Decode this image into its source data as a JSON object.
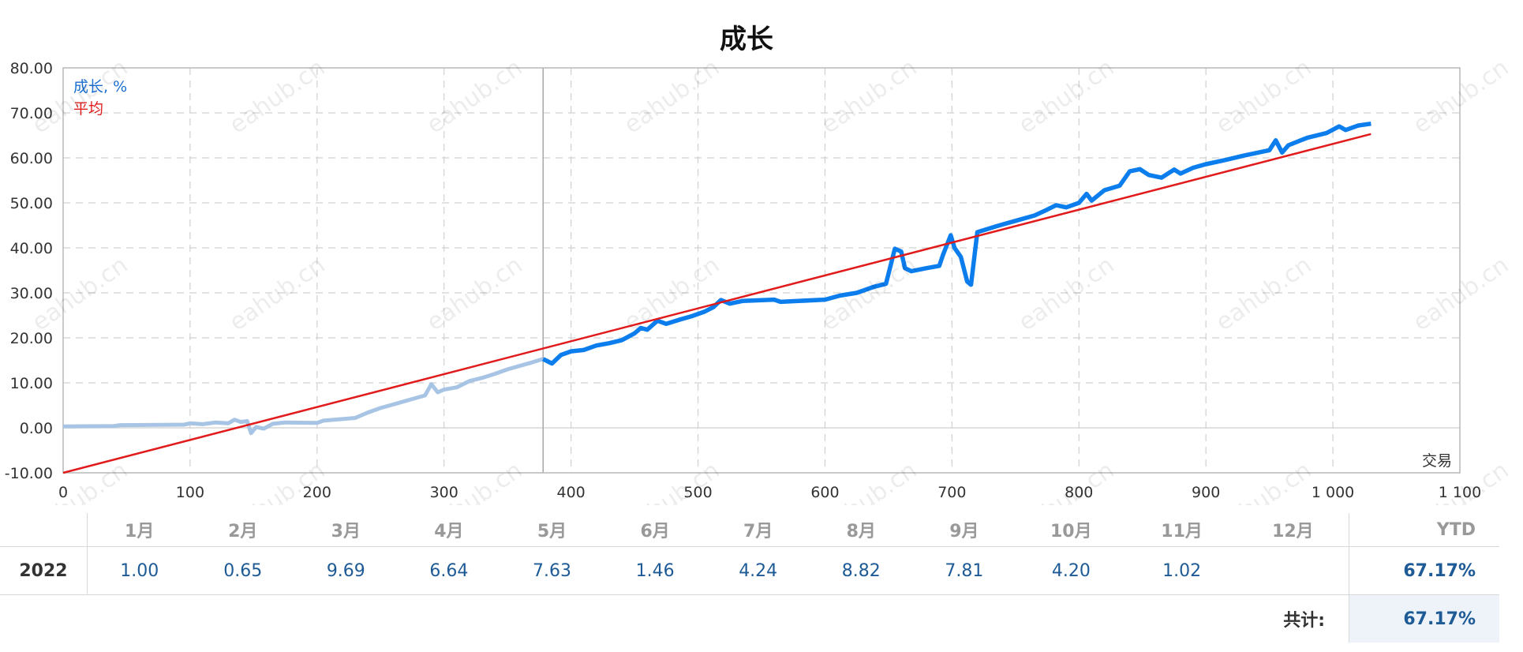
{
  "chart_data": {
    "type": "line",
    "title": "成长",
    "x_range": [
      0,
      1100
    ],
    "y_range": [
      -10,
      80
    ],
    "x_ticks": [
      "0",
      "100",
      "200",
      "300",
      "400",
      "500",
      "600",
      "700",
      "800",
      "900",
      "1 000",
      "1 100"
    ],
    "y_ticks": [
      "-10.00",
      "0.00",
      "10.00",
      "20.00",
      "30.00",
      "40.00",
      "50.00",
      "60.00",
      "70.00",
      "80.00"
    ],
    "x_axis_note": "交易",
    "grid": true,
    "legend": {
      "placement": "top-left",
      "growth_label": "成长, %",
      "average_label": "平均"
    },
    "colors": {
      "history": "#a8c4e4",
      "growth": "#0b7ded",
      "average": "#e11b1b"
    },
    "split_x": 378,
    "series": [
      {
        "name": "成长, %",
        "points": [
          [
            0,
            0.3
          ],
          [
            40,
            0.4
          ],
          [
            45,
            0.6
          ],
          [
            95,
            0.7
          ],
          [
            100,
            1.0
          ],
          [
            110,
            0.8
          ],
          [
            120,
            1.2
          ],
          [
            130,
            1.0
          ],
          [
            135,
            1.8
          ],
          [
            140,
            1.3
          ],
          [
            145,
            1.5
          ],
          [
            148,
            -1.2
          ],
          [
            152,
            0.2
          ],
          [
            158,
            -0.2
          ],
          [
            165,
            0.9
          ],
          [
            175,
            1.2
          ],
          [
            200,
            1.1
          ],
          [
            205,
            1.6
          ],
          [
            230,
            2.2
          ],
          [
            240,
            3.4
          ],
          [
            250,
            4.4
          ],
          [
            260,
            5.2
          ],
          [
            275,
            6.4
          ],
          [
            285,
            7.2
          ],
          [
            290,
            9.7
          ],
          [
            295,
            7.9
          ],
          [
            300,
            8.5
          ],
          [
            310,
            9.0
          ],
          [
            320,
            10.4
          ],
          [
            330,
            11.1
          ],
          [
            340,
            12.0
          ],
          [
            350,
            13.0
          ],
          [
            360,
            13.8
          ],
          [
            370,
            14.6
          ],
          [
            378,
            15.3
          ],
          [
            380,
            15.0
          ],
          [
            385,
            14.3
          ],
          [
            392,
            16.2
          ],
          [
            400,
            17.0
          ],
          [
            410,
            17.3
          ],
          [
            420,
            18.3
          ],
          [
            430,
            18.8
          ],
          [
            440,
            19.5
          ],
          [
            450,
            21.0
          ],
          [
            455,
            22.2
          ],
          [
            460,
            21.8
          ],
          [
            468,
            23.8
          ],
          [
            475,
            23.1
          ],
          [
            485,
            24.0
          ],
          [
            495,
            24.8
          ],
          [
            505,
            25.8
          ],
          [
            512,
            26.8
          ],
          [
            518,
            28.4
          ],
          [
            525,
            27.6
          ],
          [
            535,
            28.2
          ],
          [
            560,
            28.5
          ],
          [
            565,
            28.0
          ],
          [
            600,
            28.5
          ],
          [
            612,
            29.4
          ],
          [
            625,
            30.0
          ],
          [
            638,
            31.3
          ],
          [
            648,
            32.0
          ],
          [
            655,
            39.8
          ],
          [
            660,
            39.2
          ],
          [
            663,
            35.5
          ],
          [
            668,
            34.8
          ],
          [
            680,
            35.5
          ],
          [
            690,
            36.0
          ],
          [
            693,
            38.5
          ],
          [
            699,
            42.8
          ],
          [
            702,
            40.0
          ],
          [
            707,
            38.0
          ],
          [
            712,
            32.5
          ],
          [
            715,
            31.8
          ],
          [
            720,
            43.5
          ],
          [
            735,
            44.8
          ],
          [
            750,
            46.0
          ],
          [
            765,
            47.2
          ],
          [
            775,
            48.5
          ],
          [
            782,
            49.5
          ],
          [
            790,
            49.0
          ],
          [
            800,
            50.0
          ],
          [
            806,
            52.0
          ],
          [
            810,
            50.5
          ],
          [
            820,
            52.8
          ],
          [
            832,
            53.8
          ],
          [
            840,
            57.0
          ],
          [
            848,
            57.5
          ],
          [
            855,
            56.2
          ],
          [
            865,
            55.6
          ],
          [
            875,
            57.4
          ],
          [
            880,
            56.5
          ],
          [
            890,
            57.8
          ],
          [
            900,
            58.6
          ],
          [
            915,
            59.5
          ],
          [
            930,
            60.5
          ],
          [
            950,
            61.7
          ],
          [
            955,
            63.9
          ],
          [
            960,
            61.2
          ],
          [
            965,
            62.8
          ],
          [
            980,
            64.5
          ],
          [
            995,
            65.5
          ],
          [
            1005,
            67.0
          ],
          [
            1010,
            66.2
          ],
          [
            1020,
            67.2
          ],
          [
            1030,
            67.6
          ]
        ]
      },
      {
        "name": "平均",
        "points": [
          [
            0,
            -10
          ],
          [
            1030,
            65.3
          ]
        ]
      }
    ]
  },
  "watermark": "eahub.cn",
  "monthly": {
    "months": [
      "1月",
      "2月",
      "3月",
      "4月",
      "5月",
      "6月",
      "7月",
      "8月",
      "9月",
      "10月",
      "11月",
      "12月"
    ],
    "ytd_label": "YTD",
    "rows": [
      {
        "year": "2022",
        "values": [
          "1.00",
          "0.65",
          "9.69",
          "6.64",
          "7.63",
          "1.46",
          "4.24",
          "8.82",
          "7.81",
          "4.20",
          "1.02",
          ""
        ],
        "ytd": "67.17%"
      }
    ],
    "total_label": "共计:",
    "total_value": "67.17%"
  }
}
